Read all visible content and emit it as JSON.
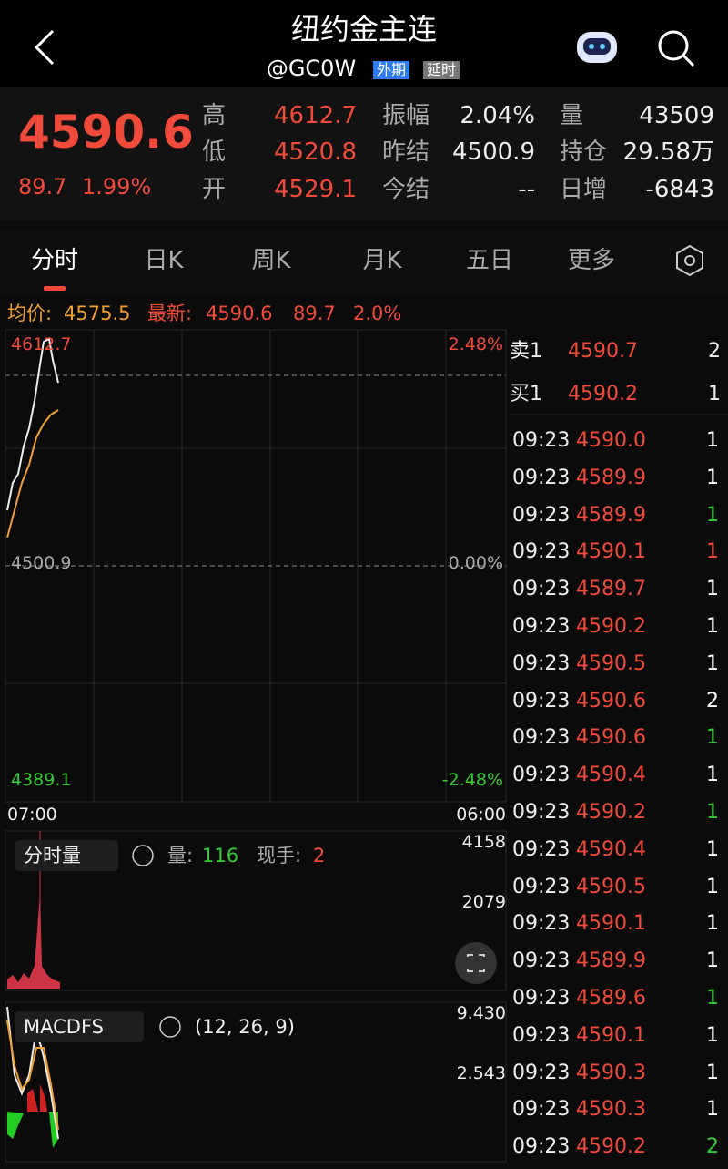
{
  "header": {
    "title": "纽约金主连",
    "code": "@GC0W",
    "tags": [
      "外期",
      "延时"
    ]
  },
  "quote": {
    "price": "4590.6",
    "change": "89.7",
    "percent": "1.99%",
    "stats": [
      [
        [
          "高",
          "4612.7"
        ],
        [
          "振幅",
          "2.04%"
        ],
        [
          "量",
          "43509"
        ]
      ],
      [
        [
          "低",
          "4520.8"
        ],
        [
          "昨结",
          "4500.9"
        ],
        [
          "持仓",
          "29.58万"
        ]
      ],
      [
        [
          "开",
          "4529.1"
        ],
        [
          "今结",
          "--"
        ],
        [
          "日增",
          "-6843"
        ]
      ]
    ]
  },
  "tabs": [
    "分时",
    "日K",
    "周K",
    "月K",
    "五日",
    "更多"
  ],
  "info": {
    "avg_label": "均价:",
    "avg": "4575.5",
    "latest_label": "最新:",
    "latest": "4590.6",
    "change": "89.7",
    "percent": "2.0%"
  },
  "chart": {
    "high": "4612.7",
    "prev": "4500.9",
    "low": "4389.1",
    "pct_high": "2.48%",
    "pct_mid": "0.00%",
    "pct_low": "-2.48%",
    "time_start": "07:00",
    "time_end": "06:00"
  },
  "volume": {
    "selector": "分时量",
    "vol_label": "量:",
    "vol": "116",
    "hand_label": "现手:",
    "hand": "2",
    "scale": [
      "4158",
      "2079"
    ]
  },
  "macd": {
    "name": "MACDFS",
    "params": "(12, 26, 9)",
    "scale": [
      "9.430",
      "2.543"
    ]
  },
  "orderbook": {
    "ask": {
      "label": "卖1",
      "price": "4590.7",
      "qty": "2"
    },
    "bid": {
      "label": "买1",
      "price": "4590.2",
      "qty": "1"
    }
  },
  "trades": [
    {
      "time": "09:23",
      "price": "4590.0",
      "qty": "1",
      "qty_color": "#ffffff"
    },
    {
      "time": "09:23",
      "price": "4589.9",
      "qty": "1",
      "qty_color": "#ffffff"
    },
    {
      "time": "09:23",
      "price": "4589.9",
      "qty": "1",
      "qty_color": "#33cc33"
    },
    {
      "time": "09:23",
      "price": "4590.1",
      "qty": "1",
      "qty_color": "#f04a3a"
    },
    {
      "time": "09:23",
      "price": "4589.7",
      "qty": "1",
      "qty_color": "#ffffff"
    },
    {
      "time": "09:23",
      "price": "4590.2",
      "qty": "1",
      "qty_color": "#ffffff"
    },
    {
      "time": "09:23",
      "price": "4590.5",
      "qty": "1",
      "qty_color": "#ffffff"
    },
    {
      "time": "09:23",
      "price": "4590.6",
      "qty": "2",
      "qty_color": "#ffffff"
    },
    {
      "time": "09:23",
      "price": "4590.6",
      "qty": "1",
      "qty_color": "#33cc33"
    },
    {
      "time": "09:23",
      "price": "4590.4",
      "qty": "1",
      "qty_color": "#ffffff"
    },
    {
      "time": "09:23",
      "price": "4590.2",
      "qty": "1",
      "qty_color": "#33cc33"
    },
    {
      "time": "09:23",
      "price": "4590.4",
      "qty": "1",
      "qty_color": "#ffffff"
    },
    {
      "time": "09:23",
      "price": "4590.5",
      "qty": "1",
      "qty_color": "#ffffff"
    },
    {
      "time": "09:23",
      "price": "4590.1",
      "qty": "1",
      "qty_color": "#ffffff"
    },
    {
      "time": "09:23",
      "price": "4589.9",
      "qty": "1",
      "qty_color": "#ffffff"
    },
    {
      "time": "09:23",
      "price": "4589.6",
      "qty": "1",
      "qty_color": "#33cc33"
    },
    {
      "time": "09:23",
      "price": "4590.1",
      "qty": "1",
      "qty_color": "#ffffff"
    },
    {
      "time": "09:23",
      "price": "4590.3",
      "qty": "1",
      "qty_color": "#ffffff"
    },
    {
      "time": "09:23",
      "price": "4590.3",
      "qty": "1",
      "qty_color": "#ffffff"
    },
    {
      "time": "09:23",
      "price": "4590.2",
      "qty": "2",
      "qty_color": "#33cc33"
    }
  ]
}
